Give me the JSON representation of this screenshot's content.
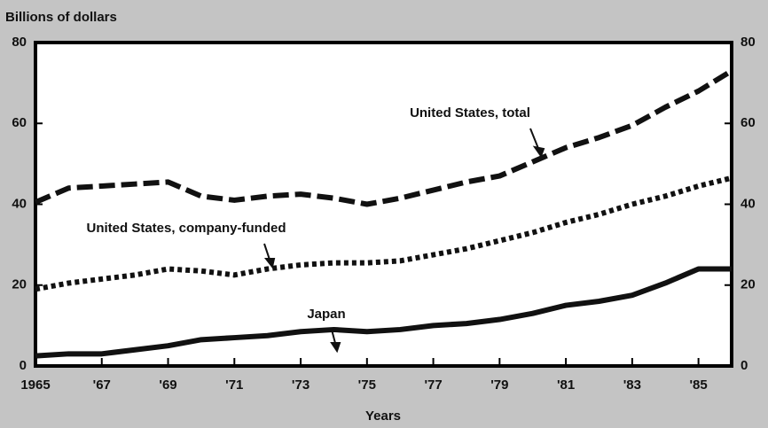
{
  "chart_data": {
    "type": "line",
    "ylabel": "Billions of dollars",
    "xlabel": "Years",
    "x": [
      1965,
      1966,
      1967,
      1968,
      1969,
      1970,
      1971,
      1972,
      1973,
      1974,
      1975,
      1976,
      1977,
      1978,
      1979,
      1980,
      1981,
      1982,
      1983,
      1984,
      1985,
      1986
    ],
    "series": [
      {
        "name": "United States, total",
        "color": "#111111",
        "dash": "dashed",
        "values": [
          40.5,
          44,
          44.5,
          45,
          45.5,
          42,
          41,
          42,
          42.5,
          41.5,
          40,
          41.5,
          43.5,
          45.5,
          47,
          50.5,
          54,
          56.5,
          59.5,
          64,
          68,
          73
        ]
      },
      {
        "name": "United States, company-funded",
        "color": "#111111",
        "dash": "dotted",
        "values": [
          19,
          20.5,
          21.5,
          22.5,
          24,
          23.5,
          22.5,
          24,
          25,
          25.5,
          25.5,
          26,
          27.5,
          29,
          31,
          33,
          35.5,
          37.5,
          40,
          42,
          44.5,
          46.5
        ]
      },
      {
        "name": "Japan",
        "color": "#111111",
        "dash": "solid",
        "values": [
          2.5,
          3,
          3,
          4,
          5,
          6.5,
          7,
          7.5,
          8.5,
          9,
          8.5,
          9,
          10,
          10.5,
          11.5,
          13,
          15,
          16,
          17.5,
          20.5,
          24,
          24
        ]
      }
    ],
    "xlim": [
      1965,
      1986
    ],
    "xticks": [
      1965,
      {
        "value": 1967,
        "label": "'67"
      },
      {
        "value": 1969,
        "label": "'69"
      },
      {
        "value": 1971,
        "label": "'71"
      },
      {
        "value": 1973,
        "label": "'73"
      },
      {
        "value": 1975,
        "label": "'75"
      },
      {
        "value": 1977,
        "label": "'77"
      },
      {
        "value": 1979,
        "label": "'79"
      },
      {
        "value": 1981,
        "label": "'81"
      },
      {
        "value": 1983,
        "label": "'83"
      },
      {
        "value": 1985,
        "label": "'85"
      }
    ],
    "ylim": [
      0,
      80
    ],
    "yticks": [
      0,
      20,
      40,
      60,
      80
    ],
    "grid": false
  }
}
